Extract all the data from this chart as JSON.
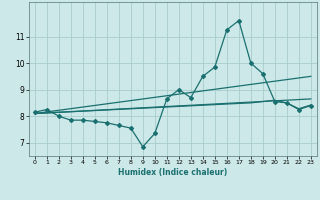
{
  "title": "",
  "xlabel": "Humidex (Indice chaleur)",
  "bg_color": "#cde8e8",
  "grid_color": "#aacccc",
  "line_color": "#1a7070",
  "xlim": [
    -0.5,
    23.5
  ],
  "ylim": [
    6.5,
    12.3
  ],
  "yticks": [
    7,
    8,
    9,
    10,
    11
  ],
  "xticks": [
    0,
    1,
    2,
    3,
    4,
    5,
    6,
    7,
    8,
    9,
    10,
    11,
    12,
    13,
    14,
    15,
    16,
    17,
    18,
    19,
    20,
    21,
    22,
    23
  ],
  "main_x": [
    0,
    1,
    2,
    3,
    4,
    5,
    6,
    7,
    8,
    9,
    10,
    11,
    12,
    13,
    14,
    15,
    16,
    17,
    18,
    19,
    20,
    21,
    22,
    23
  ],
  "main_y": [
    8.15,
    8.25,
    8.0,
    7.85,
    7.85,
    7.8,
    7.75,
    7.65,
    7.55,
    6.85,
    7.35,
    8.65,
    9.0,
    8.7,
    9.5,
    9.85,
    11.25,
    11.6,
    10.0,
    9.6,
    8.55,
    8.5,
    8.25,
    8.4
  ],
  "line2_x": [
    0,
    23
  ],
  "line2_y": [
    8.1,
    9.5
  ],
  "line3_x": [
    0,
    23
  ],
  "line3_y": [
    8.1,
    8.65
  ],
  "line4_x": [
    0,
    17,
    18,
    19,
    20,
    21,
    22,
    23
  ],
  "line4_y": [
    8.1,
    8.48,
    8.5,
    8.55,
    8.6,
    8.5,
    8.28,
    8.42
  ]
}
